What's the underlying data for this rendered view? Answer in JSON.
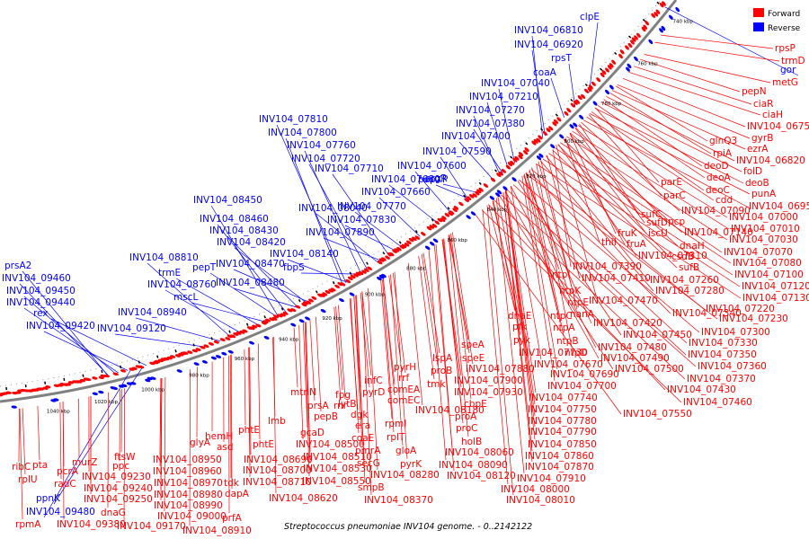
{
  "caption": "Streptococcus pneumoniae INV104 genome. - 0..2142122",
  "legend": [
    {
      "label": "Forward",
      "color": "#ff0000"
    },
    {
      "label": "Reverse",
      "color": "#0000ff"
    }
  ],
  "colors": {
    "forward": "#ff0000",
    "reverse": "#0000ff",
    "backbone": "#808080"
  },
  "ticks": [
    "740 kbp",
    "760 kbp",
    "780 kbp",
    "800 kbp",
    "820 kbp",
    "840 kbp",
    "860 kbp",
    "880 kbp",
    "900 kbp",
    "920 kbp",
    "940 kbp",
    "960 kbp",
    "980 kbp",
    "1000 kbp",
    "1020 kbp",
    "1040 kbp"
  ],
  "reverse_labels": [
    "clpE",
    "INV104_06810",
    "INV104_06920",
    "rpsT",
    "coaA",
    "INV104_07040",
    "INV104_07210",
    "INV104_07270",
    "INV104_07380",
    "INV104_07400",
    "INV104_07590",
    "INV104_07600",
    "pepXP",
    "argR",
    "INV104_07680",
    "INV104_07660",
    "INV104_07770",
    "INV104_07830",
    "INV104_07890",
    "INV104_07810",
    "INV104_07800",
    "INV104_07760",
    "INV104_07720",
    "INV104_07710",
    "INV104_08040",
    "INV104_08450",
    "INV104_08460",
    "INV104_08430",
    "INV104_08420",
    "INV104_08470",
    "INV104_08480",
    "INV104_08140",
    "fbpS",
    "INV104_08810",
    "trmE",
    "pepT",
    "INV104_08760",
    "mscL",
    "INV104_08940",
    "INV104_09120",
    "prsA2",
    "INV104_09460",
    "INV104_09450",
    "INV104_09440",
    "rex",
    "INV104_09420",
    "INV104_09480",
    "ppnK",
    "gor"
  ],
  "forward_labels_right": [
    "rpsP",
    "trmD",
    "metG",
    "pepN",
    "ciaR",
    "ciaH",
    "INV104_06750",
    "gyrB",
    "glnQ3",
    "rpiA",
    "ezrA",
    "INV104_06820",
    "deoD",
    "folD",
    "deoA",
    "deoB",
    "deoC",
    "punA",
    "cdd",
    "INV104_06950",
    "parE",
    "INV104_07090",
    "parC",
    "sufC",
    "INV104_07000",
    "pcp",
    "sufD",
    "INV104_07010",
    "iscU",
    "INV104_07140",
    "INV104_07030",
    "thiI",
    "fruK",
    "fruA",
    "dnaH",
    "INV104_07310",
    "csdB",
    "INV104_07070",
    "sufB",
    "INV104_07080",
    "INV104_07390",
    "INV104_07260",
    "INV104_07100",
    "INV104_07410",
    "INV104_07280",
    "INV104_07120",
    "INV104_07130",
    "INV104_07220",
    "INV104_07340",
    "INV104_07230",
    "INV104_07420",
    "INV104_07300",
    "INV104_07450",
    "INV104_07330",
    "INV104_07480",
    "INV104_07350",
    "INV104_07490",
    "INV104_07360",
    "INV104_07500",
    "INV104_07370",
    "INV104_07430",
    "INV104_07460",
    "INV104_07550"
  ],
  "forward_labels_lower": [
    "ntpI",
    "ntpK",
    "ntpE",
    "nanA",
    "INV104_07470",
    "ntpC",
    "ntpA",
    "ntpB",
    "ntpD",
    "dnaE",
    "pfk",
    "pyk",
    "INV104_07730",
    "INV104_07670",
    "INV104_07690",
    "INV104_07700",
    "INV104_07740",
    "INV104_07750",
    "INV104_07780",
    "INV104_07790",
    "INV104_07850",
    "INV104_07860",
    "INV104_07870",
    "INV104_07910",
    "INV104_08000",
    "INV104_08010",
    "speA",
    "speE",
    "INV104_07880",
    "INV104_07900",
    "INV104_07930",
    "cbpE",
    "proA",
    "proC",
    "holB",
    "INV104_08060",
    "INV104_08090",
    "INV104_08120",
    "lspA",
    "proB",
    "tmk",
    "INV104_08180",
    "pyrH",
    "rrf",
    "comEA",
    "comEC",
    "infC",
    "pyrD",
    "rpmI",
    "rplT",
    "gloA",
    "pyrK",
    "fpg",
    "rnr",
    "lytB",
    "dgk",
    "era",
    "coaE",
    "pmrA",
    "secG",
    "INV104_08280",
    "smpB",
    "INV104_08370",
    "prsA",
    "pepB",
    "mtnN",
    "lmb",
    "gcaD",
    "INV104_08500",
    "INV104_08510",
    "INV104_08530",
    "INV104_08550",
    "INV104_08620",
    "phtE",
    "phtE",
    "hemH",
    "asd",
    "INV104_08690",
    "INV104_08700",
    "INV104_08710",
    "glyA",
    "INV104_08950",
    "INV104_08960",
    "INV104_08970",
    "INV104_08980",
    "INV104_08990",
    "INV104_09000",
    "tdk",
    "dapA",
    "prfA",
    "INV104_08910",
    "ftsW",
    "ppc",
    "INV104_09230",
    "INV104_09240",
    "INV104_09250",
    "dnaG",
    "INV104_09170",
    "murZ",
    "pcrA",
    "radC",
    "INV104_09380",
    "ribC",
    "rplU",
    "pta",
    "rpmA"
  ]
}
